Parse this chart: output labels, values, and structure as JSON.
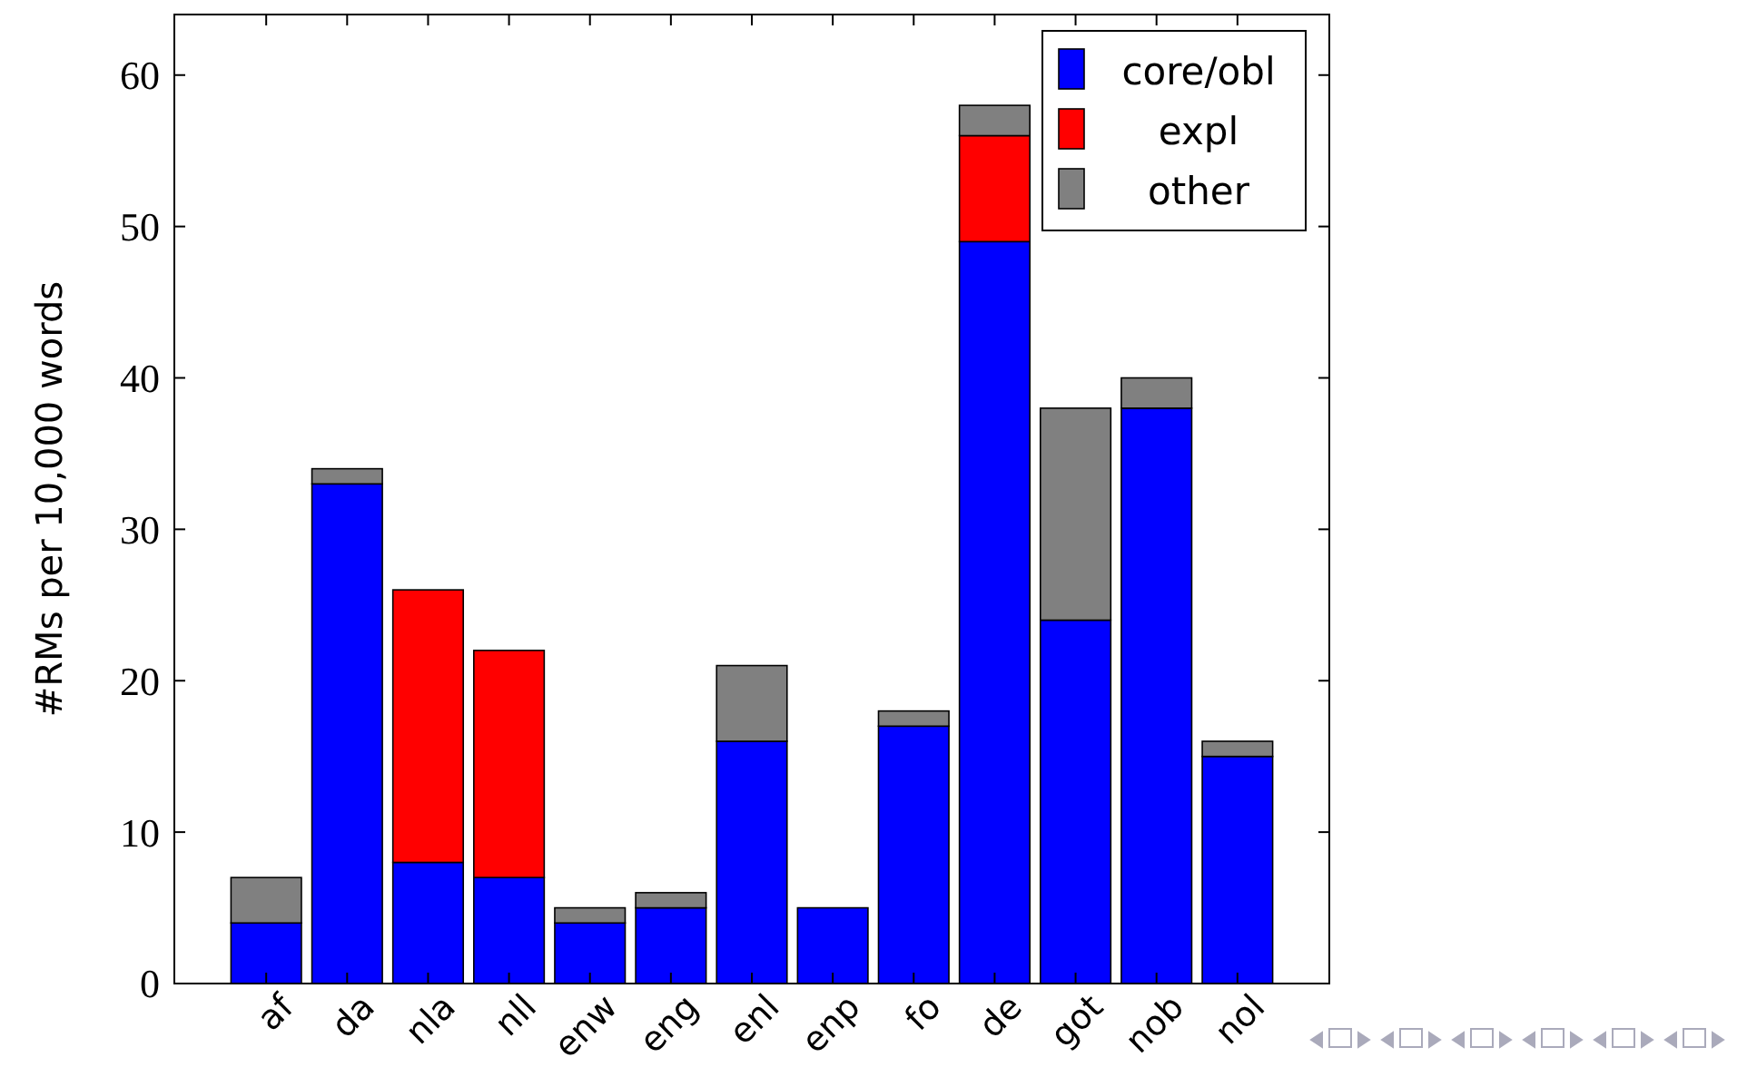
{
  "chart_data": {
    "type": "bar",
    "stacked": true,
    "ylabel": "#RMs per 10,000 words",
    "categories": [
      "af",
      "da",
      "nla",
      "nll",
      "enw",
      "eng",
      "enl",
      "enp",
      "fo",
      "de",
      "got",
      "nob",
      "nol"
    ],
    "series": [
      {
        "name": "core/obl",
        "color": "#0000ff",
        "values": [
          4,
          33,
          8,
          7,
          4,
          5,
          16,
          5,
          17,
          49,
          24,
          38,
          15
        ]
      },
      {
        "name": "expl",
        "color": "#ff0000",
        "values": [
          0,
          0,
          18,
          15,
          0,
          0,
          0,
          0,
          0,
          7,
          0,
          0,
          0
        ]
      },
      {
        "name": "other",
        "color": "#808080",
        "values": [
          3,
          1,
          0,
          0,
          1,
          1,
          5,
          0,
          1,
          2,
          14,
          2,
          1
        ]
      }
    ],
    "ylim": [
      0,
      64
    ],
    "yticks": [
      0,
      10,
      20,
      30,
      40,
      50,
      60
    ],
    "grid": false,
    "legend": "top right"
  }
}
